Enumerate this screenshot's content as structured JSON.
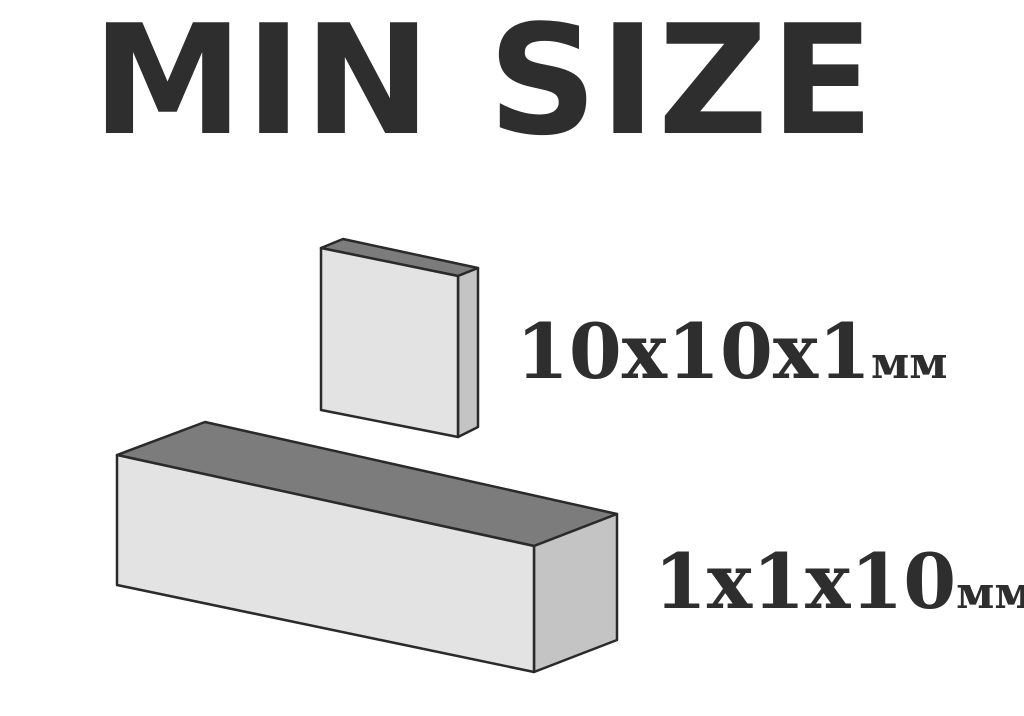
{
  "title": "MIN SIZE",
  "plate": {
    "label": "10x10x1",
    "unit": "мм"
  },
  "bar": {
    "label": "1x1x10",
    "unit": "мм"
  },
  "colors": {
    "text": "#2f2e2f",
    "face_light": "#e3e3e3",
    "face_mid": "#c4c4c4",
    "face_dark": "#7c7c7c",
    "outline": "#2a2a2a"
  }
}
